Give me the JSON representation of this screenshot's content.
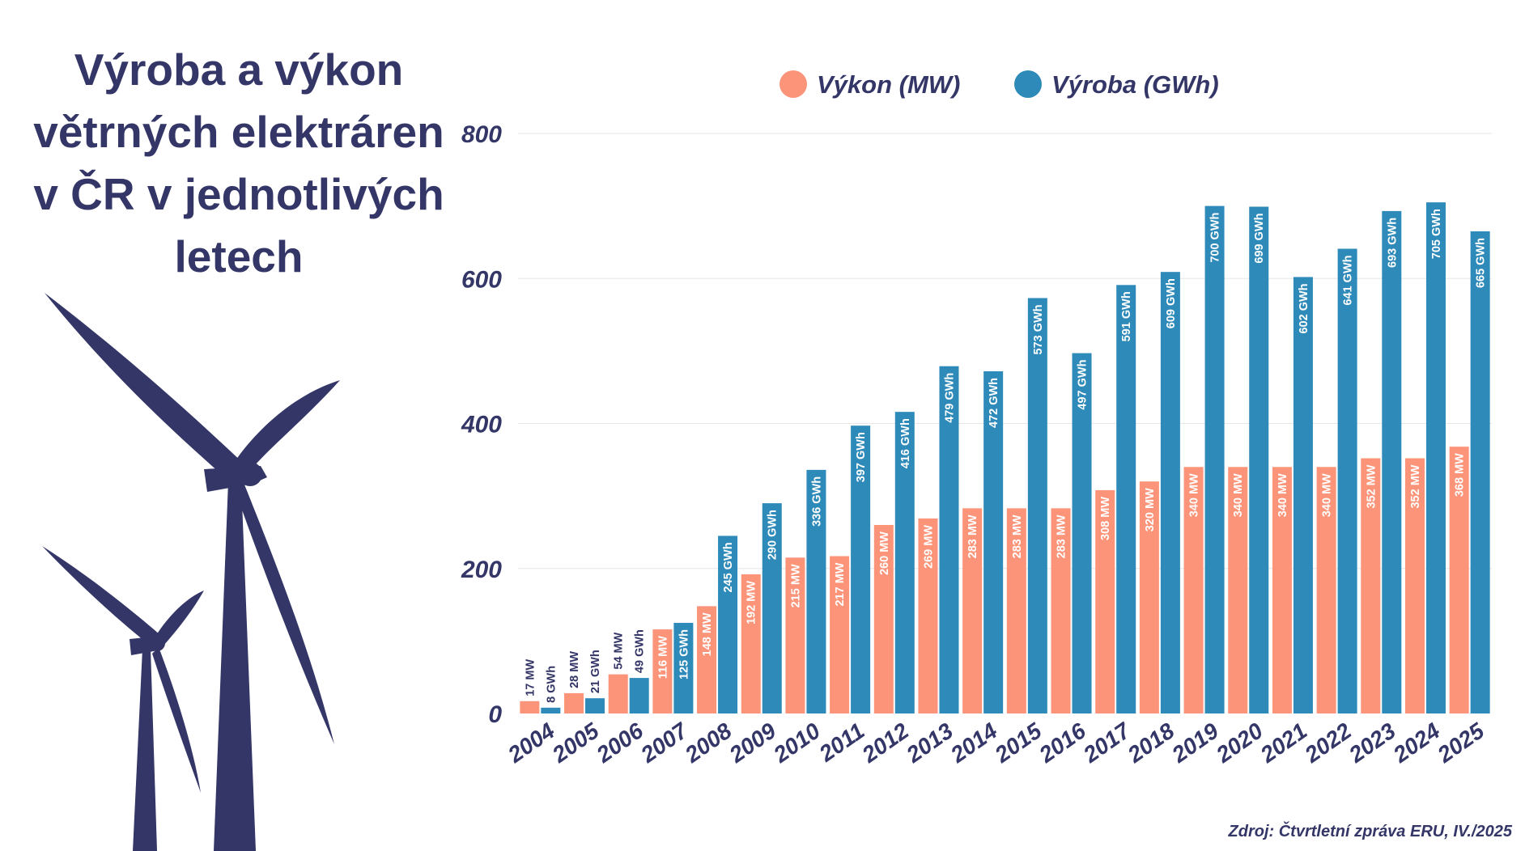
{
  "title_lines": [
    "Výroba a výkon",
    "větrných elektráren",
    "v ČR v jednotlivých",
    "letech"
  ],
  "source": "Zdroj: Čtvrtletní zpráva ERU, IV./2025",
  "colors": {
    "text": "#333666",
    "vykon": "#FB9478",
    "vyroba": "#2E8AB9",
    "grid": "#E6E6E6",
    "turbine": "#333666"
  },
  "chart_data": {
    "type": "bar",
    "categories": [
      "2004",
      "2005",
      "2006",
      "2007",
      "2008",
      "2009",
      "2010",
      "2011",
      "2012",
      "2013",
      "2014",
      "2015",
      "2016",
      "2017",
      "2018",
      "2019",
      "2020",
      "2021",
      "2022",
      "2023",
      "2024",
      "2025"
    ],
    "series": [
      {
        "name": "Výkon (MW)",
        "values": [
          17,
          28,
          54,
          116,
          148,
          192,
          215,
          217,
          260,
          269,
          283,
          283,
          283,
          308,
          320,
          340,
          340,
          340,
          340,
          352,
          352,
          368
        ],
        "labels": [
          "17 MW",
          "28 MW",
          "54 MW",
          "116 MW",
          "148 MW",
          "192 MW",
          "215 MW",
          "217 MW",
          "260 MW",
          "269 MW",
          "283 MW",
          "283 MW",
          "283 MW",
          "308 MW",
          "320 MW",
          "340 MW",
          "340 MW",
          "340 MW",
          "340 MW",
          "352 MW",
          "352 MW",
          "368 MW"
        ]
      },
      {
        "name": "Výroba (GWh)",
        "values": [
          8,
          21,
          49,
          125,
          245,
          290,
          336,
          397,
          416,
          479,
          472,
          573,
          497,
          591,
          609,
          700,
          699,
          602,
          641,
          693,
          705,
          665
        ],
        "labels": [
          "8 GWh",
          "21 GWh",
          "49 GWh",
          "125 GWh",
          "245 GWh",
          "290 GWh",
          "336 GWh",
          "397 GWh",
          "416 GWh",
          "479 GWh",
          "472 GWh",
          "573 GWh",
          "497 GWh",
          "591 GWh",
          "609 GWh",
          "700 GWh",
          "699 GWh",
          "602 GWh",
          "641 GWh",
          "693 GWh",
          "705 GWh",
          "665 GWh"
        ]
      }
    ],
    "y_ticks": [
      "0",
      "200",
      "400",
      "600",
      "800"
    ],
    "ylim": [
      0,
      800
    ],
    "grid": true,
    "legend_position": "top"
  }
}
